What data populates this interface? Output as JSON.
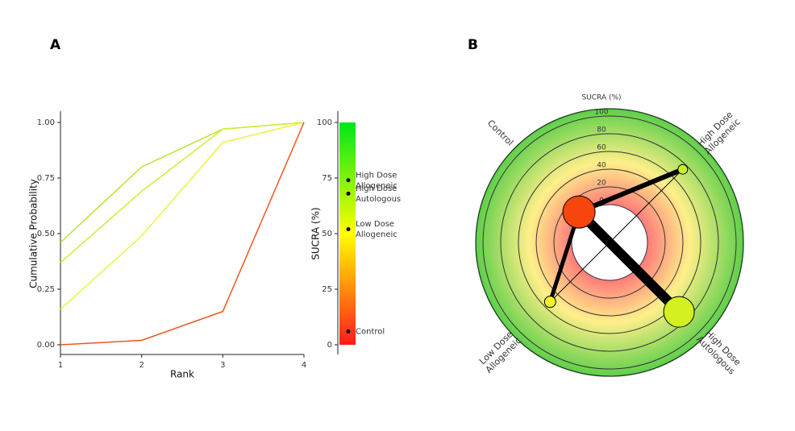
{
  "chart_data": [
    {
      "type": "line",
      "panel_label": "A",
      "x": [
        1,
        2,
        3,
        4
      ],
      "xlim": [
        1,
        4
      ],
      "xticks": [
        1,
        2,
        3,
        4
      ],
      "ylim": [
        0,
        1
      ],
      "yticks": [
        {
          "value": 0,
          "label": "0.00"
        },
        {
          "value": 0.25,
          "label": "0.25"
        },
        {
          "value": 0.5,
          "label": "0.50"
        },
        {
          "value": 0.75,
          "label": "0.75"
        },
        {
          "value": 1,
          "label": "1.00"
        }
      ],
      "xlabel": "Rank",
      "ylabel": "Cumulative Probability",
      "series": [
        {
          "color": "#b4e632",
          "values": [
            0.46,
            0.8,
            0.97,
            1.0
          ]
        },
        {
          "color": "#d3ec30",
          "values": [
            0.37,
            0.69,
            0.97,
            1.0
          ]
        },
        {
          "color": "#f0f040",
          "values": [
            0.16,
            0.49,
            0.91,
            1.0
          ]
        },
        {
          "color": "#f0561f",
          "values": [
            0.0,
            0.02,
            0.15,
            1.0
          ]
        }
      ]
    },
    {
      "type": "colorbar",
      "categories": [
        [
          "High Dose",
          "Allogeneic"
        ],
        [
          "High Dose",
          "Autologous"
        ],
        [
          "Low Dose",
          "Allogeneic"
        ],
        [
          "Control"
        ]
      ],
      "values": [
        74,
        68,
        52,
        6
      ],
      "ylim": [
        0,
        100
      ],
      "yticks": [
        0,
        25,
        50,
        75,
        100
      ],
      "ylabel": "SUCRA (%)",
      "gradient": [
        "#ff1a1a",
        "#ffff00",
        "#00e61a"
      ]
    },
    {
      "type": "radial",
      "panel_label": "B",
      "title": "SUCRA (%)",
      "rlim": [
        0,
        100
      ],
      "rticks": [
        0,
        20,
        40,
        60,
        80,
        100
      ],
      "nodes": [
        {
          "name": [
            "Control"
          ],
          "angle": 135,
          "value": 6,
          "size": 20,
          "color": "#f6460e"
        },
        {
          "name": [
            "High Dose",
            "Allogeneic"
          ],
          "angle": 45,
          "value": 74,
          "size": 6,
          "color": "#c6ef2c"
        },
        {
          "name": [
            "High Dose",
            "Autologous"
          ],
          "angle": 315,
          "value": 68,
          "size": 19,
          "color": "#d4f021"
        },
        {
          "name": [
            "Low Dose",
            "Allogeneic"
          ],
          "angle": 225,
          "value": 52,
          "size": 7,
          "color": "#f4f22c"
        }
      ],
      "edges": [
        {
          "from": 0,
          "to": 2,
          "weight": 12
        },
        {
          "from": 0,
          "to": 1,
          "weight": 6
        },
        {
          "from": 0,
          "to": 3,
          "weight": 5
        },
        {
          "from": 1,
          "to": 3,
          "weight": 1
        }
      ]
    }
  ]
}
